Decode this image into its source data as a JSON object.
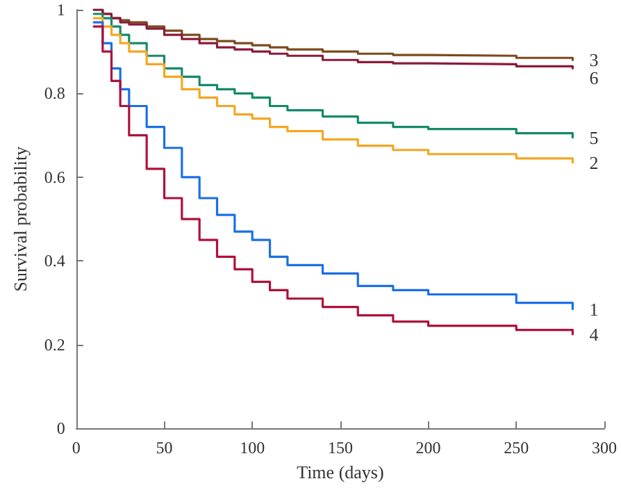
{
  "chart_data": {
    "type": "step",
    "xlabel": "Time (days)",
    "ylabel": "Survival probability",
    "xlim": [
      0,
      300
    ],
    "xticks": [
      0,
      50,
      100,
      150,
      200,
      250,
      300
    ],
    "ylim": [
      0,
      1
    ],
    "yticks": [
      0,
      0.2,
      0.4,
      0.6,
      0.8,
      1
    ],
    "grid": false,
    "legend": false,
    "marker": "none",
    "line_style": "solid",
    "x": [
      10,
      15,
      20,
      25,
      30,
      40,
      50,
      60,
      70,
      80,
      90,
      100,
      110,
      120,
      140,
      160,
      180,
      200,
      250,
      282
    ],
    "series": [
      {
        "name": "3",
        "color": "#7a4a1c",
        "values": [
          1,
          0.99,
          0.98,
          0.975,
          0.97,
          0.96,
          0.95,
          0.94,
          0.93,
          0.925,
          0.92,
          0.915,
          0.91,
          0.905,
          0.9,
          0.895,
          0.892,
          0.89,
          0.885,
          0.88
        ]
      },
      {
        "name": "6",
        "color": "#8b1a3a",
        "values": [
          1,
          0.99,
          0.98,
          0.97,
          0.965,
          0.955,
          0.94,
          0.93,
          0.92,
          0.91,
          0.905,
          0.9,
          0.895,
          0.89,
          0.88,
          0.875,
          0.872,
          0.87,
          0.865,
          0.86
        ]
      },
      {
        "name": "5",
        "color": "#138a6a",
        "values": [
          0.99,
          0.98,
          0.96,
          0.94,
          0.92,
          0.89,
          0.86,
          0.84,
          0.82,
          0.81,
          0.8,
          0.79,
          0.77,
          0.76,
          0.745,
          0.73,
          0.72,
          0.715,
          0.705,
          0.695
        ]
      },
      {
        "name": "2",
        "color": "#f5a623",
        "values": [
          0.98,
          0.96,
          0.94,
          0.92,
          0.9,
          0.87,
          0.84,
          0.81,
          0.79,
          0.77,
          0.75,
          0.74,
          0.72,
          0.71,
          0.69,
          0.675,
          0.665,
          0.655,
          0.645,
          0.635
        ]
      },
      {
        "name": "1",
        "color": "#1a6fe8",
        "values": [
          0.97,
          0.92,
          0.86,
          0.81,
          0.77,
          0.72,
          0.67,
          0.6,
          0.55,
          0.51,
          0.47,
          0.45,
          0.41,
          0.39,
          0.37,
          0.34,
          0.33,
          0.32,
          0.3,
          0.285
        ]
      },
      {
        "name": "4",
        "color": "#b0103a",
        "values": [
          0.96,
          0.9,
          0.83,
          0.77,
          0.7,
          0.62,
          0.55,
          0.5,
          0.45,
          0.41,
          0.38,
          0.35,
          0.33,
          0.31,
          0.29,
          0.27,
          0.255,
          0.245,
          0.235,
          0.225
        ]
      }
    ]
  }
}
